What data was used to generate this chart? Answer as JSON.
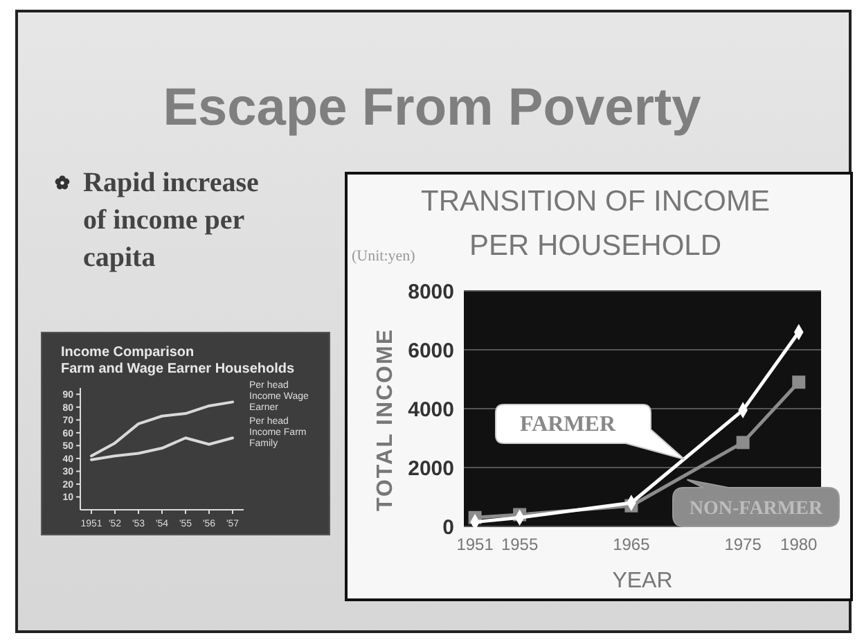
{
  "chart_data": [
    {
      "type": "other",
      "title": "Escape From Poverty",
      "annotations": [
        "Rapid increase of income per capita"
      ]
    },
    {
      "type": "line",
      "title": "Income Comparison",
      "subtitle": "Farm and Wage Earner Households",
      "categories": [
        "1951",
        "'52",
        "'53",
        "'54",
        "'55",
        "'56",
        "'57"
      ],
      "series": [
        {
          "name": "Per head Income Wage Earner",
          "color": "#d9d9d9",
          "values": [
            42,
            52,
            67,
            73,
            75,
            81,
            84
          ]
        },
        {
          "name": "Per head Income Farm Family",
          "color": "#d9d9d9",
          "values": [
            39,
            42,
            44,
            48,
            56,
            51,
            56
          ]
        }
      ],
      "ylim": [
        0,
        95
      ],
      "yticks": [
        10,
        20,
        30,
        40,
        50,
        60,
        70,
        80,
        90
      ],
      "grid": false
    },
    {
      "type": "line",
      "title": "TRANSITION OF INCOME PER HOUSEHOLD",
      "xlabel": "YEAR",
      "ylabel": "TOTAL INCOME",
      "annotations": [
        "(Unit:yen)"
      ],
      "x": [
        1951,
        1955,
        1965,
        1975,
        1980
      ],
      "series": [
        {
          "name": "FARMER",
          "color": "#ffffff",
          "marker": "diamond",
          "values": [
            150,
            300,
            800,
            3950,
            6600
          ]
        },
        {
          "name": "NON-FARMER",
          "color": "#8c8c8c",
          "marker": "square",
          "values": [
            300,
            400,
            700,
            2850,
            4900
          ]
        }
      ],
      "xlim": [
        1950,
        1982
      ],
      "xticks": [
        1951,
        1955,
        1965,
        1975,
        1980
      ],
      "ylim": [
        0,
        8000
      ],
      "yticks": [
        0,
        2000,
        4000,
        6000,
        8000
      ],
      "grid": "y"
    }
  ]
}
